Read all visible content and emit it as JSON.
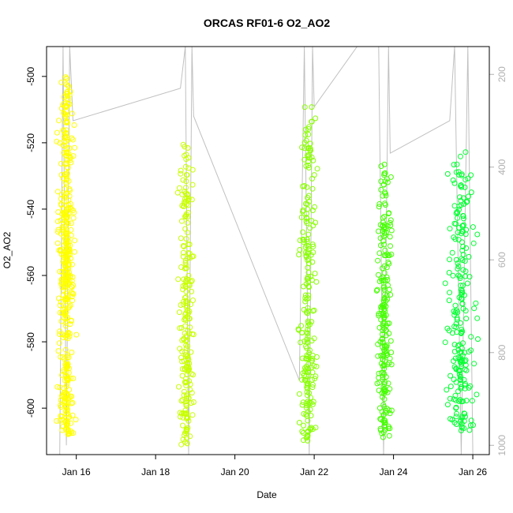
{
  "chart_data": {
    "type": "scatter",
    "title": "ORCAS RF01-6 O2_AO2",
    "xlabel": "Date",
    "ylabel": "O2_AO2",
    "x_axis": {
      "ticks": [
        {
          "date": "2016-01-16",
          "label": "Jan 16"
        },
        {
          "date": "2016-01-18",
          "label": "Jan 18"
        },
        {
          "date": "2016-01-20",
          "label": "Jan 20"
        },
        {
          "date": "2016-01-22",
          "label": "Jan 22"
        },
        {
          "date": "2016-01-24",
          "label": "Jan 24"
        },
        {
          "date": "2016-01-26",
          "label": "Jan 26"
        }
      ],
      "range": [
        "2016-01-15 06:00",
        "2016-01-26 10:00"
      ]
    },
    "y_axis": {
      "ticks": [
        -600,
        -580,
        -560,
        -540,
        -520,
        -500
      ],
      "range": [
        -614,
        -491
      ]
    },
    "y2_axis": {
      "ticks": [
        200,
        400,
        600,
        800,
        1000
      ],
      "range": [
        1020,
        140
      ],
      "reversed": true,
      "color": "#b0b0b0"
    },
    "series": [
      {
        "color": "#ffff00",
        "segments": [
          {
            "start": "2016-01-15 14:00",
            "end": "2016-01-15 22:00",
            "y_min": -608,
            "y_max": -540
          },
          {
            "start": "2016-01-15 14:00",
            "end": "2016-01-15 22:00",
            "y_min": -565,
            "y_max": -500
          }
        ]
      },
      {
        "color": "#c8ff00",
        "segments": [
          {
            "start": "2016-01-18 15:00",
            "end": "2016-01-18 22:00",
            "y_min": -611,
            "y_max": -520
          }
        ]
      },
      {
        "color": "#88ff00",
        "segments": [
          {
            "start": "2016-01-21 16:00",
            "end": "2016-01-22 00:00",
            "y_min": -610,
            "y_max": -507
          }
        ]
      },
      {
        "color": "#44ff00",
        "segments": [
          {
            "start": "2016-01-23 15:00",
            "end": "2016-01-23 22:00",
            "y_min": -609,
            "y_max": -526
          }
        ]
      },
      {
        "color": "#00ff30",
        "segments": [
          {
            "start": "2016-01-25 10:00",
            "end": "2016-01-26 00:00",
            "y_min": -607,
            "y_max": -522
          }
        ]
      }
    ],
    "secondary_line": {
      "color": "#c0c0c0",
      "points": [
        [
          "2016-01-15 14:00",
          1020
        ],
        [
          "2016-01-15 16:00",
          140
        ],
        [
          "2016-01-15 18:00",
          1000
        ],
        [
          "2016-01-15 20:00",
          140
        ],
        [
          "2016-01-15 22:00",
          300
        ],
        [
          "2016-01-18 15:00",
          230
        ],
        [
          "2016-01-18 18:00",
          140
        ],
        [
          "2016-01-18 20:00",
          1020
        ],
        [
          "2016-01-18 22:00",
          140
        ],
        [
          "2016-01-18 23:00",
          290
        ],
        [
          "2016-01-21 15:00",
          860
        ],
        [
          "2016-01-21 18:00",
          140
        ],
        [
          "2016-01-21 21:00",
          1020
        ],
        [
          "2016-01-21 23:00",
          140
        ],
        [
          "2016-01-22 00:00",
          270
        ],
        [
          "2016-01-23 02:00",
          140
        ],
        [
          "2016-01-23 15:00",
          140
        ],
        [
          "2016-01-23 18:00",
          1020
        ],
        [
          "2016-01-23 21:00",
          140
        ],
        [
          "2016-01-23 22:00",
          370
        ],
        [
          "2016-01-25 10:00",
          300
        ],
        [
          "2016-01-25 13:00",
          140
        ],
        [
          "2016-01-25 17:00",
          1020
        ],
        [
          "2016-01-25 21:00",
          140
        ],
        [
          "2016-01-26 00:00",
          1020
        ]
      ]
    }
  }
}
